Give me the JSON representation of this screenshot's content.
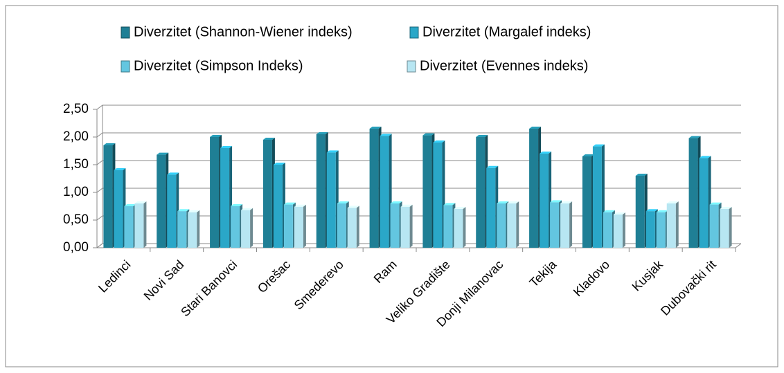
{
  "chart_data": {
    "type": "bar3d",
    "categories": [
      "Ledinci",
      "Novi Sad",
      "Stari Banovci",
      "Orešac",
      "Smederevo",
      "Ram",
      "Veliko Gradište",
      "Donji Milanovac",
      "Tekija",
      "Kladovo",
      "Kusjak",
      "Dubovački rit"
    ],
    "series": [
      {
        "name": "Diverzitet (Shannon-Wiener indeks)",
        "color": "#1f7f95",
        "values": [
          1.85,
          1.68,
          2.0,
          1.95,
          2.05,
          2.15,
          2.03,
          2.0,
          2.15,
          1.65,
          1.3,
          1.98
        ]
      },
      {
        "name": "Diverzitet (Margalef indeks)",
        "color": "#2aa7c8",
        "values": [
          1.4,
          1.32,
          1.8,
          1.5,
          1.72,
          2.02,
          1.9,
          1.44,
          1.7,
          1.83,
          0.66,
          1.62
        ]
      },
      {
        "name": "Diverzitet (Simpson Indeks)",
        "color": "#63c6e0",
        "values": [
          0.75,
          0.66,
          0.75,
          0.78,
          0.8,
          0.8,
          0.77,
          0.8,
          0.82,
          0.64,
          0.64,
          0.78
        ]
      },
      {
        "name": "Diverzitet (Evennes indeks)",
        "color": "#b7e6f2",
        "values": [
          0.8,
          0.64,
          0.68,
          0.74,
          0.72,
          0.74,
          0.7,
          0.8,
          0.8,
          0.6,
          0.8,
          0.7
        ]
      }
    ],
    "ylim": [
      0,
      2.5
    ],
    "yticks": [
      {
        "value": 0,
        "label": "0,00"
      },
      {
        "value": 0.5,
        "label": "0,50"
      },
      {
        "value": 1,
        "label": "1,00"
      },
      {
        "value": 1.5,
        "label": "1,50"
      },
      {
        "value": 2,
        "label": "2,00"
      },
      {
        "value": 2.5,
        "label": "2,50"
      }
    ],
    "grid": true
  }
}
